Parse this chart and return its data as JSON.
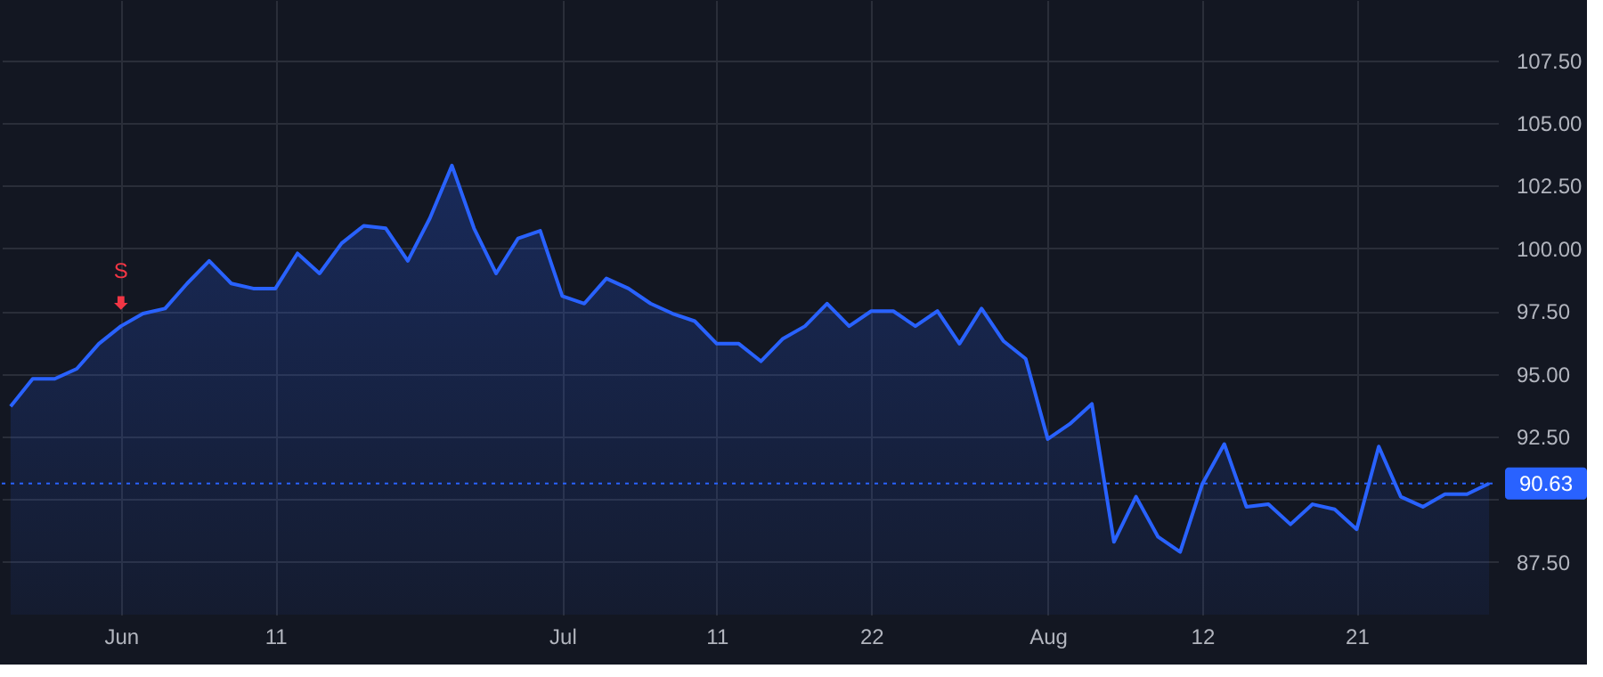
{
  "chart_data": {
    "type": "area",
    "categories": [
      null,
      null,
      null,
      null,
      null,
      "Jun",
      null,
      null,
      null,
      null,
      null,
      null,
      "11",
      null,
      null,
      null,
      null,
      null,
      null,
      null,
      null,
      null,
      null,
      null,
      null,
      "Jul",
      null,
      null,
      null,
      null,
      null,
      null,
      "11",
      null,
      null,
      null,
      null,
      null,
      null,
      "22",
      null,
      null,
      null,
      null,
      null,
      null,
      null,
      "Aug",
      null,
      null,
      null,
      null,
      null,
      null,
      "12",
      null,
      null,
      null,
      null,
      null,
      null,
      "21",
      null,
      null,
      null,
      null,
      null,
      null
    ],
    "series": [
      {
        "color": "#2962ff",
        "values": [
          93.7,
          94.8,
          94.8,
          95.2,
          96.2,
          96.9,
          97.4,
          97.6,
          98.6,
          99.5,
          98.6,
          98.4,
          98.4,
          99.8,
          99.0,
          100.2,
          100.9,
          100.8,
          99.5,
          101.2,
          103.3,
          100.8,
          99.0,
          100.4,
          100.7,
          98.1,
          97.8,
          98.8,
          98.4,
          97.8,
          97.4,
          97.1,
          96.2,
          96.2,
          95.5,
          96.4,
          96.9,
          97.8,
          96.9,
          97.5,
          97.5,
          96.9,
          97.5,
          96.2,
          97.6,
          96.3,
          95.6,
          92.4,
          93.0,
          93.8,
          88.3,
          90.1,
          88.5,
          87.9,
          90.6,
          92.2,
          89.7,
          89.8,
          89.0,
          89.8,
          89.6,
          88.8,
          92.1,
          90.1,
          89.7,
          90.2,
          90.2,
          90.63
        ]
      }
    ],
    "ylim": [
      85.4,
      109.9
    ],
    "yticks": [
      {
        "value": 87.5,
        "label": "87.50"
      },
      {
        "value": 90,
        "label": null
      },
      {
        "value": 92.5,
        "label": "92.50"
      },
      {
        "value": 95,
        "label": "95.00"
      },
      {
        "value": 97.5,
        "label": "97.50"
      },
      {
        "value": 100,
        "label": "100.00"
      },
      {
        "value": 102.5,
        "label": "102.50"
      },
      {
        "value": 105,
        "label": "105.00"
      },
      {
        "value": 107.5,
        "label": "107.50"
      }
    ],
    "ref_lines": [
      {
        "axis": "y",
        "value": 90.63,
        "label": "90.63",
        "color": "#2962ff",
        "line_style": "dotted"
      }
    ],
    "annotations": [
      {
        "text": "S",
        "x": "Jun",
        "y": 96.9
      }
    ],
    "grid": true
  }
}
